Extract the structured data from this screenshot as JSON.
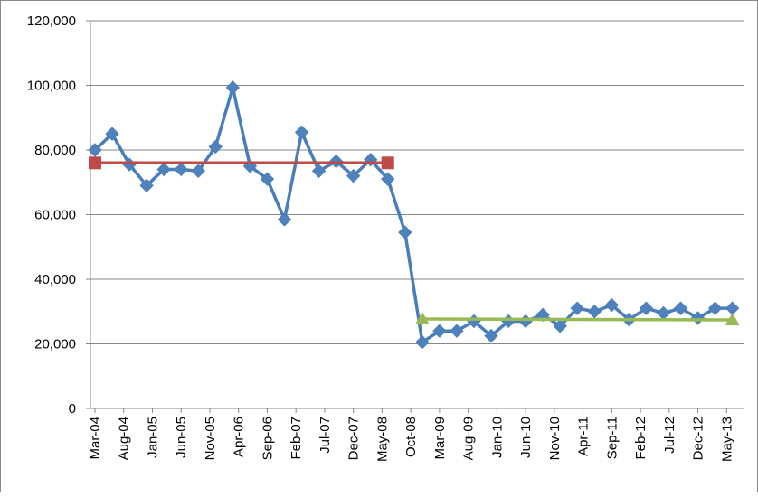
{
  "chart_data": {
    "type": "line",
    "ylim": [
      0,
      120000
    ],
    "yticks": [
      0,
      {
        "value": 20000,
        "label": "20,000"
      },
      {
        "value": 40000,
        "label": "40,000"
      },
      {
        "value": 60000,
        "label": "60,000"
      },
      {
        "value": 80000,
        "label": "80,000"
      },
      {
        "value": 100000,
        "label": "100,000"
      },
      {
        "value": 120000,
        "label": "120,000"
      }
    ],
    "xlim": [
      "2004-03",
      "2013-07"
    ],
    "xticks": [
      {
        "value": "2004-03",
        "label": "Mar-04"
      },
      {
        "value": "2004-08",
        "label": "Aug-04"
      },
      {
        "value": "2005-01",
        "label": "Jan-05"
      },
      {
        "value": "2005-06",
        "label": "Jun-05"
      },
      {
        "value": "2005-11",
        "label": "Nov-05"
      },
      {
        "value": "2006-04",
        "label": "Apr-06"
      },
      {
        "value": "2006-09",
        "label": "Sep-06"
      },
      {
        "value": "2007-02",
        "label": "Feb-07"
      },
      {
        "value": "2007-07",
        "label": "Jul-07"
      },
      {
        "value": "2007-12",
        "label": "Dec-07"
      },
      {
        "value": "2008-05",
        "label": "May-08"
      },
      {
        "value": "2008-10",
        "label": "Oct-08"
      },
      {
        "value": "2009-03",
        "label": "Mar-09"
      },
      {
        "value": "2009-08",
        "label": "Aug-09"
      },
      {
        "value": "2010-01",
        "label": "Jan-10"
      },
      {
        "value": "2010-06",
        "label": "Jun-10"
      },
      {
        "value": "2010-11",
        "label": "Nov-10"
      },
      {
        "value": "2011-04",
        "label": "Apr-11"
      },
      {
        "value": "2011-09",
        "label": "Sep-11"
      },
      {
        "value": "2012-02",
        "label": "Feb-12"
      },
      {
        "value": "2012-07",
        "label": "Jul-12"
      },
      {
        "value": "2012-12",
        "label": "Dec-12"
      },
      {
        "value": "2013-05",
        "label": "May-13"
      }
    ],
    "grid": true,
    "series": [
      {
        "color": "#4a7ebb",
        "marker": "diamond",
        "x": [
          "2004-03",
          "2004-06",
          "2004-09",
          "2004-12",
          "2005-03",
          "2005-06",
          "2005-09",
          "2005-12",
          "2006-03",
          "2006-06",
          "2006-09",
          "2006-12",
          "2007-03",
          "2007-06",
          "2007-09",
          "2007-12",
          "2008-03",
          "2008-06",
          "2008-09",
          "2008-12",
          "2009-03",
          "2009-06",
          "2009-09",
          "2009-12",
          "2010-03",
          "2010-06",
          "2010-09",
          "2010-12",
          "2011-03",
          "2011-06",
          "2011-09",
          "2011-12",
          "2012-03",
          "2012-06",
          "2012-09",
          "2012-12",
          "2013-03",
          "2013-06"
        ],
        "values": [
          80000,
          85000,
          75500,
          69000,
          74000,
          74000,
          73500,
          81000,
          99300,
          75000,
          71000,
          58500,
          85500,
          73500,
          76500,
          72000,
          77000,
          71000,
          54500,
          20500,
          24000,
          24000,
          27000,
          22500,
          27000,
          27000,
          29000,
          25500,
          31000,
          30000,
          32000,
          27500,
          31000,
          29500,
          31000,
          28000,
          31000,
          31000
        ]
      },
      {
        "color": "#be4b48",
        "marker": "square",
        "x": [
          "2004-03",
          "2008-06"
        ],
        "values": [
          76000,
          76000
        ]
      },
      {
        "color": "#98b954",
        "marker": "triangle",
        "x": [
          "2008-12",
          "2013-06"
        ],
        "values": [
          27700,
          27400
        ]
      }
    ]
  }
}
